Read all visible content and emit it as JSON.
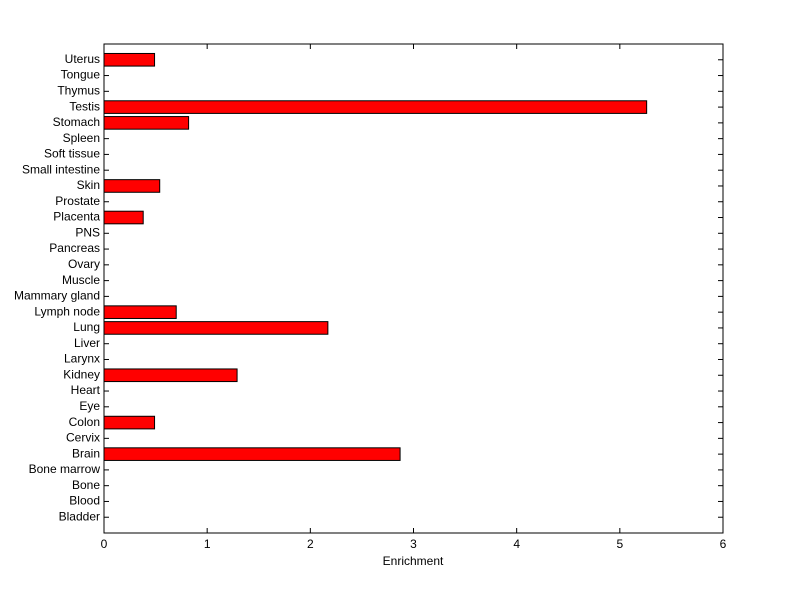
{
  "chart_data": {
    "type": "barh",
    "xlabel": "Enrichment",
    "categories": [
      "Bladder",
      "Blood",
      "Bone",
      "Bone marrow",
      "Brain",
      "Cervix",
      "Colon",
      "Eye",
      "Heart",
      "Kidney",
      "Larynx",
      "Liver",
      "Lung",
      "Lymph node",
      "Mammary gland",
      "Muscle",
      "Ovary",
      "Pancreas",
      "PNS",
      "Placenta",
      "Prostate",
      "Skin",
      "Small intestine",
      "Soft tissue",
      "Spleen",
      "Stomach",
      "Testis",
      "Thymus",
      "Tongue",
      "Uterus"
    ],
    "values": [
      0,
      0,
      0,
      0,
      2.87,
      0,
      0.49,
      0,
      0,
      1.29,
      0,
      0,
      2.17,
      0.7,
      0,
      0,
      0,
      0,
      0,
      0.38,
      0,
      0.54,
      0,
      0,
      0,
      0.82,
      5.26,
      0,
      0,
      0.49
    ],
    "color": "#ff0000",
    "xlim": [
      0,
      6
    ],
    "xticks": [
      0,
      1,
      2,
      3,
      4,
      5,
      6
    ],
    "grid": false
  }
}
